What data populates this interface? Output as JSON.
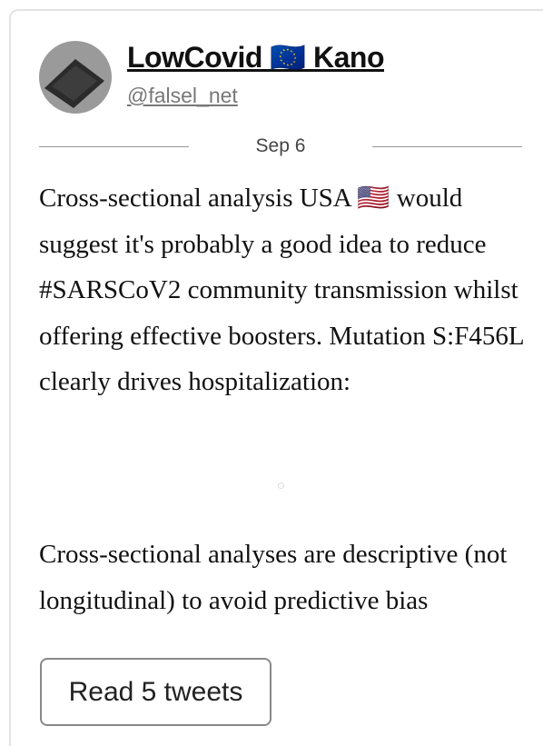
{
  "author": {
    "name": "LowCovid 🇪🇺 Kano",
    "handle": "@falsel_net"
  },
  "date": "Sep 6",
  "paragraphs": [
    "Cross-sectional analysis USA 🇺🇸 would suggest it's probably a good idea to reduce #SARSCoV2 community transmission whilst offering effective boosters. Mutation S:F456L clearly drives hospitalization:",
    "Cross-sectional analyses are descriptive (not longitudinal) to avoid predictive bias"
  ],
  "button": "Read 5 tweets"
}
